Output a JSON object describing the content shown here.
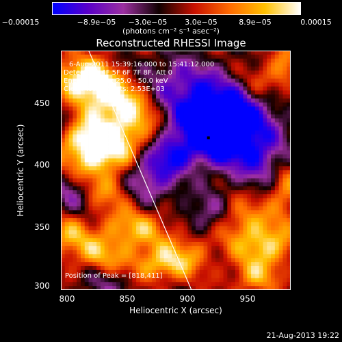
{
  "chart_data": {
    "type": "heatmap",
    "title": "Reconstructed RHESSI Image",
    "xlabel": "Heliocentric X (arcsec)",
    "ylabel": "Heliocentric Y (arcsec)",
    "xlim": [
      790,
      980
    ],
    "ylim": [
      300,
      495
    ],
    "xticks": [
      "800",
      "850",
      "900",
      "950"
    ],
    "yticks": [
      "300",
      "350",
      "400",
      "450"
    ],
    "colorbar": {
      "ticks": [
        "−0.00015",
        "−8.9e−05",
        "−3.0e−05",
        "3.0e−05",
        "8.9e−05",
        "0.00015"
      ],
      "units": "(photons cm⁻² s⁻¹ asec⁻²)",
      "range": [
        -0.00015,
        0.00015
      ],
      "colors": [
        "#0000ff",
        "#5a00c8",
        "#9b2fa0",
        "#100000",
        "#c81000",
        "#ff6a00",
        "#ffc000",
        "#ffffff"
      ]
    },
    "info_lines": [
      "6-Aug-2011 15:39:16.000 to 15:41:12.000",
      "Detectors: 4F 5F 6F 7F 8F, Att 0",
      "Energy Range: 25.0 - 50.0 keV",
      "Clean    Total counts: 2.53E+03"
    ],
    "peak_label": "Position of Peak = [818,411]",
    "peak": [
      818,
      411
    ],
    "limb_line": [
      [
        813,
        495
      ],
      [
        898,
        300
      ]
    ]
  },
  "timestamp": "21-Aug-2013 19:22"
}
